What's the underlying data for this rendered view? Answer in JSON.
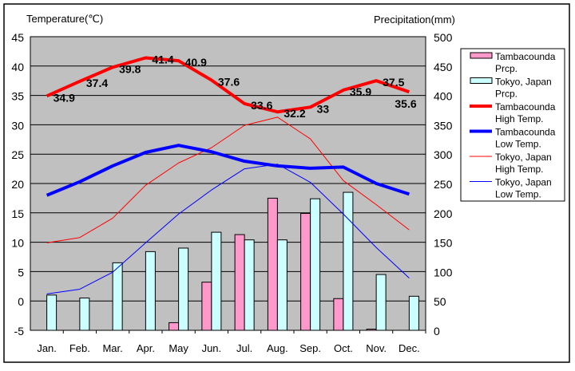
{
  "chart_data": {
    "type": "bar+line",
    "title": "",
    "ylabel_left": "Temperature(℃)",
    "ylabel_right": "Precipitation(mm)",
    "ylim_left": [
      -5,
      45
    ],
    "ylim_right": [
      0,
      500
    ],
    "yticks_left": [
      "45",
      "40",
      "35",
      "30",
      "25",
      "20",
      "15",
      "10",
      "5",
      "0",
      "-5"
    ],
    "yticks_right": [
      "500",
      "450",
      "400",
      "350",
      "300",
      "250",
      "200",
      "150",
      "100",
      "50",
      "0"
    ],
    "categories": [
      "Jan.",
      "Feb.",
      "Mar.",
      "Apr.",
      "May",
      "Jun.",
      "Jul.",
      "Aug.",
      "Sep.",
      "Oct.",
      "Nov.",
      "Dec."
    ],
    "grid": true,
    "legend_position": "right",
    "bars": [
      {
        "name": "Tambacounda Prcp.",
        "legend": [
          "Tambacounda",
          "Prcp."
        ],
        "color": "#ff99cc",
        "values": [
          0,
          0,
          0,
          0,
          13,
          82,
          163,
          225,
          199,
          54,
          2,
          0
        ]
      },
      {
        "name": "Tokyo, Japan Prcp.",
        "legend": [
          "Tokyo, Japan",
          "Prcp."
        ],
        "color": "#ccffff",
        "values": [
          60,
          55,
          115,
          134,
          140,
          167,
          154,
          154,
          224,
          235,
          95,
          58
        ]
      }
    ],
    "lines": [
      {
        "name": "Tambacounda High Temp.",
        "legend": [
          "Tambacounda",
          "High Temp."
        ],
        "color": "#ff0000",
        "width": 4,
        "values": [
          34.9,
          37.4,
          39.8,
          41.4,
          40.9,
          37.6,
          33.6,
          32.2,
          33,
          35.9,
          37.5,
          35.6
        ],
        "labels": [
          "34.9",
          "37.4",
          "39.8",
          "41.4",
          "40.9",
          "37.6",
          "33.6",
          "32.2",
          "33",
          "35.9",
          "37.5",
          "35.6"
        ]
      },
      {
        "name": "Tambacounda Low Temp.",
        "legend": [
          "Tambacounda",
          "Low Temp."
        ],
        "color": "#0000ff",
        "width": 4,
        "values": [
          18.0,
          20.3,
          23.0,
          25.3,
          26.5,
          25.4,
          23.8,
          23.0,
          22.6,
          22.8,
          20.0,
          18.2
        ]
      },
      {
        "name": "Tokyo, Japan High Temp.",
        "legend": [
          "Tokyo, Japan",
          "High Temp."
        ],
        "color": "#ff0000",
        "width": 1,
        "values": [
          9.9,
          10.8,
          14.1,
          19.7,
          23.5,
          26.1,
          29.9,
          31.3,
          27.6,
          20.5,
          16.4,
          12.1
        ]
      },
      {
        "name": "Tokyo, Japan Low Temp.",
        "legend": [
          "Tokyo, Japan",
          "Low Temp."
        ],
        "color": "#0000ff",
        "width": 1,
        "values": [
          1.2,
          2.0,
          4.9,
          9.9,
          14.8,
          18.9,
          22.5,
          23.3,
          20.2,
          14.8,
          9.1,
          3.9
        ]
      }
    ]
  }
}
